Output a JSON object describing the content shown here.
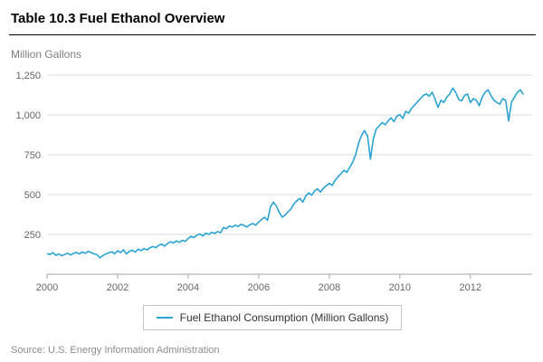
{
  "header": {
    "title": "Table 10.3 Fuel Ethanol Overview"
  },
  "colors": {
    "line": "#2aa3d4",
    "grid": "#dcdcdc",
    "axis": "#a6a6a6",
    "tick_text": "#666666"
  },
  "chart_data": {
    "type": "line",
    "title": "Table 10.3 Fuel Ethanol Overview",
    "xlabel": "",
    "ylabel": "Million Gallons",
    "ylim": [
      0,
      1250
    ],
    "x_range": [
      2000,
      2013.75
    ],
    "grid": true,
    "legend_position": "bottom",
    "y_ticks": [
      {
        "value": 250,
        "label": "250"
      },
      {
        "value": 500,
        "label": "500"
      },
      {
        "value": 750,
        "label": "750"
      },
      {
        "value": 1000,
        "label": "1,000"
      },
      {
        "value": 1250,
        "label": "1,250"
      }
    ],
    "x_ticks": [
      {
        "value": 2000,
        "label": "2000"
      },
      {
        "value": 2002,
        "label": "2002"
      },
      {
        "value": 2004,
        "label": "2004"
      },
      {
        "value": 2006,
        "label": "2006"
      },
      {
        "value": 2008,
        "label": "2008"
      },
      {
        "value": 2010,
        "label": "2010"
      },
      {
        "value": 2012,
        "label": "2012"
      }
    ],
    "series": [
      {
        "name": "Fuel Ethanol Consumption (Million Gallons)",
        "x_start": 2000.0,
        "x_step_months": 1,
        "values": [
          130,
          124,
          135,
          119,
          128,
          116,
          124,
          132,
          121,
          130,
          137,
          127,
          140,
          131,
          144,
          136,
          128,
          122,
          103,
          117,
          127,
          134,
          141,
          129,
          147,
          136,
          154,
          128,
          144,
          151,
          139,
          157,
          149,
          161,
          153,
          166,
          174,
          167,
          181,
          189,
          176,
          194,
          204,
          196,
          209,
          200,
          213,
          206,
          224,
          238,
          230,
          246,
          253,
          240,
          258,
          250,
          263,
          256,
          268,
          260,
          293,
          286,
          303,
          296,
          308,
          300,
          313,
          306,
          296,
          310,
          318,
          308,
          328,
          344,
          358,
          338,
          424,
          452,
          428,
          388,
          358,
          372,
          392,
          410,
          442,
          462,
          476,
          452,
          492,
          510,
          496,
          522,
          536,
          516,
          540,
          556,
          570,
          558,
          590,
          612,
          632,
          652,
          640,
          672,
          704,
          752,
          824,
          872,
          902,
          868,
          722,
          852,
          912,
          932,
          952,
          938,
          962,
          982,
          958,
          992,
          1002,
          978,
          1022,
          1012,
          1042,
          1062,
          1082,
          1102,
          1122,
          1132,
          1118,
          1142,
          1098,
          1048,
          1092,
          1078,
          1112,
          1132,
          1168,
          1142,
          1098,
          1088,
          1122,
          1132,
          1078,
          1102,
          1092,
          1058,
          1112,
          1142,
          1158,
          1122,
          1092,
          1078,
          1068,
          1102,
          1092,
          962,
          1082,
          1112,
          1142,
          1158,
          1128
        ]
      }
    ]
  },
  "legend": {
    "label": "Fuel Ethanol Consumption (Million Gallons)"
  },
  "footer": {
    "source": "Source: U.S. Energy Information Administration"
  }
}
